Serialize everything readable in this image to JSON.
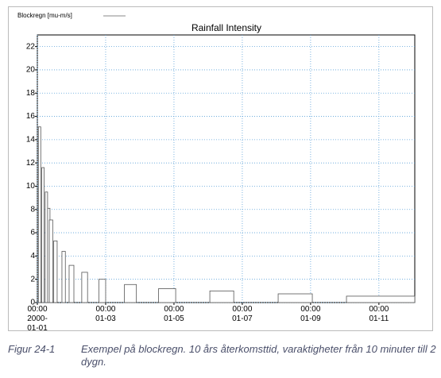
{
  "chart_data": {
    "type": "bar",
    "title": "Rainfall Intensity",
    "series": [
      {
        "name": "Blockregn [mu-m/s]",
        "color": "#888888",
        "start": [
          0.03,
          0.13,
          0.23,
          0.3,
          0.35,
          0.48,
          0.72,
          0.93,
          1.3,
          1.8,
          2.55,
          3.55,
          5.05,
          7.05,
          9.05
        ],
        "end": [
          0.1,
          0.2,
          0.3,
          0.37,
          0.45,
          0.58,
          0.82,
          1.07,
          1.47,
          2.0,
          2.9,
          4.05,
          5.75,
          8.05,
          11.05
        ],
        "values": [
          15.1,
          11.6,
          9.5,
          8.1,
          7.1,
          5.3,
          4.4,
          3.2,
          2.6,
          2.0,
          1.55,
          1.2,
          1.0,
          0.75,
          0.55
        ]
      }
    ],
    "xlim": [
      0,
      11.05
    ],
    "xticks": [
      {
        "value": 0,
        "label": "00:00 2000-01-01"
      },
      {
        "value": 2,
        "label": "00:00 01-03"
      },
      {
        "value": 4,
        "label": "00:00 01-05"
      },
      {
        "value": 6,
        "label": "00:00 01-07"
      },
      {
        "value": 8,
        "label": "00:00 01-09"
      },
      {
        "value": 10,
        "label": "00:00 01-11"
      }
    ],
    "ylim": [
      0,
      23
    ],
    "yticks": [
      0,
      2,
      4,
      6,
      8,
      10,
      12,
      14,
      16,
      18,
      20,
      22
    ],
    "grid": true,
    "legend": "top-left"
  },
  "caption": {
    "label": "Figur 24-1",
    "text": "Exempel på blockregn. 10 års återkomsttid, varaktigheter från 10 minuter till 2 dygn."
  }
}
